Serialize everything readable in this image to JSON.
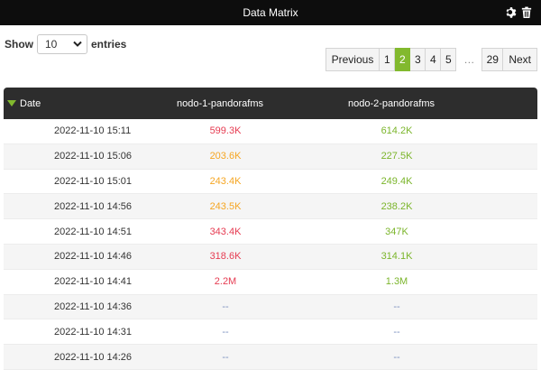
{
  "window": {
    "title": "Data Matrix",
    "icons": [
      "gear-icon",
      "trash-icon"
    ]
  },
  "length_control": {
    "prefix": "Show",
    "selected": "10",
    "suffix": "entries"
  },
  "pagination": {
    "previous": "Previous",
    "pages": [
      "1",
      "2",
      "3",
      "4",
      "5"
    ],
    "active_page": "2",
    "ellipsis": "…",
    "last_page": "29",
    "next": "Next"
  },
  "table": {
    "columns": [
      "Date",
      "nodo-1-pandorafms",
      "nodo-2-pandorafms"
    ],
    "sort_column": "Date",
    "rows": [
      {
        "date": "2022-11-10 15:11",
        "node1": "599.3K",
        "node1_color": "#e63c52",
        "node2": "614.2K",
        "node2_color": "#7bb52b"
      },
      {
        "date": "2022-11-10 15:06",
        "node1": "203.6K",
        "node1_color": "#f5a623",
        "node2": "227.5K",
        "node2_color": "#7bb52b"
      },
      {
        "date": "2022-11-10 15:01",
        "node1": "243.4K",
        "node1_color": "#f5a623",
        "node2": "249.4K",
        "node2_color": "#7bb52b"
      },
      {
        "date": "2022-11-10 14:56",
        "node1": "243.5K",
        "node1_color": "#f5a623",
        "node2": "238.2K",
        "node2_color": "#7bb52b"
      },
      {
        "date": "2022-11-10 14:51",
        "node1": "343.4K",
        "node1_color": "#e63c52",
        "node2": "347K",
        "node2_color": "#7bb52b"
      },
      {
        "date": "2022-11-10 14:46",
        "node1": "318.6K",
        "node1_color": "#e63c52",
        "node2": "314.1K",
        "node2_color": "#7bb52b"
      },
      {
        "date": "2022-11-10 14:41",
        "node1": "2.2M",
        "node1_color": "#e63c52",
        "node2": "1.3M",
        "node2_color": "#7bb52b"
      },
      {
        "date": "2022-11-10 14:36",
        "node1": "--",
        "node1_color": "#7a8fbf",
        "node2": "--",
        "node2_color": "#7a8fbf"
      },
      {
        "date": "2022-11-10 14:31",
        "node1": "--",
        "node1_color": "#7a8fbf",
        "node2": "--",
        "node2_color": "#7a8fbf"
      },
      {
        "date": "2022-11-10 14:26",
        "node1": "--",
        "node1_color": "#7a8fbf",
        "node2": "--",
        "node2_color": "#7a8fbf"
      }
    ]
  },
  "colors": {
    "accent": "#82b92e",
    "header_bg": "#2d2d2d",
    "titlebar_bg": "#0d0d0d"
  }
}
